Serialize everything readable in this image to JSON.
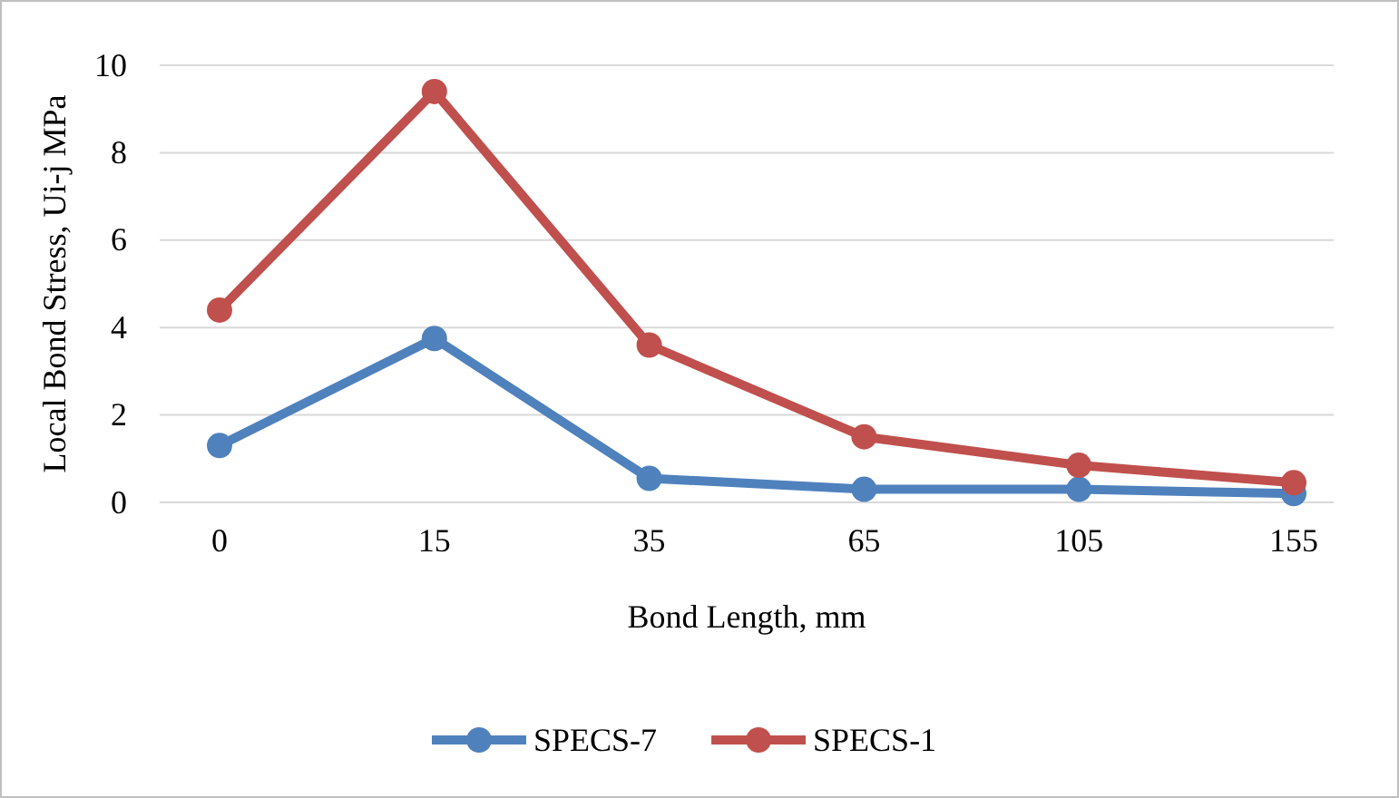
{
  "chart_data": {
    "type": "line",
    "xlabel": "Bond Length, mm",
    "ylabel": "Local Bond Stress, Ui-j MPa",
    "categories": [
      "0",
      "15",
      "35",
      "65",
      "105",
      "155"
    ],
    "series": [
      {
        "name": "SPECS-7",
        "color": "#4f81bd",
        "values": [
          1.3,
          3.75,
          0.55,
          0.3,
          0.3,
          0.2
        ]
      },
      {
        "name": "SPECS-1",
        "color": "#c0504d",
        "values": [
          4.4,
          9.4,
          3.6,
          1.5,
          0.85,
          0.45
        ]
      }
    ],
    "ylim": [
      0,
      10
    ],
    "yticks": [
      0,
      2,
      4,
      6,
      8,
      10
    ],
    "grid": "y",
    "legend": "bottom",
    "marker": "circle",
    "line_style": "solid"
  }
}
